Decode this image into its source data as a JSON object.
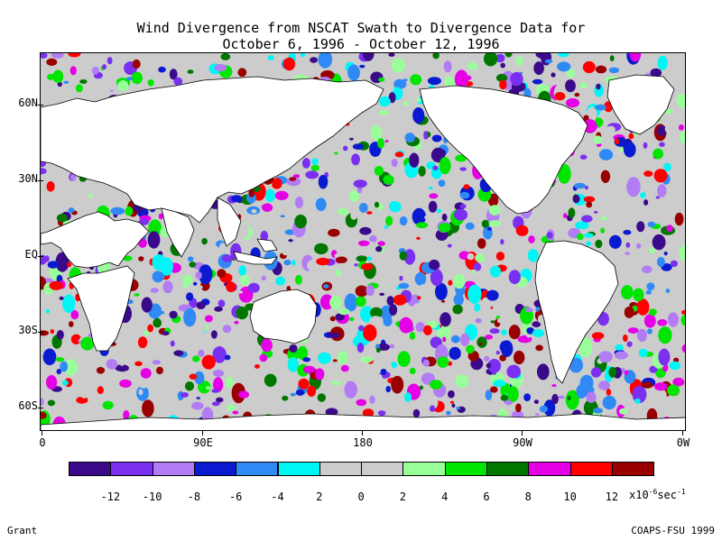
{
  "title": {
    "line1": "Wind Divergence from NSCAT Swath to Divergence Data for",
    "line2": "October 6, 1996 - October 12, 1996"
  },
  "axes": {
    "lat_labels": [
      "60N",
      "30N",
      "EQ",
      "30S",
      "60S"
    ],
    "lon_labels": [
      "0",
      "90E",
      "180",
      "90W",
      "0W"
    ]
  },
  "colorbar": {
    "colors": [
      "#3a0a8a",
      "#7b2ff0",
      "#b27cf5",
      "#0a1ad0",
      "#2f8af5",
      "#00f5f5",
      "#cccccc",
      "#cccccc",
      "#99ff99",
      "#00e600",
      "#007800",
      "#e600e6",
      "#ff0000",
      "#990000"
    ],
    "labels": [
      "-12",
      "-10",
      "-8",
      "-6",
      "-4",
      "2",
      "0",
      "2",
      "4",
      "6",
      "8",
      "10",
      "12"
    ],
    "units_base": "x10",
    "units_exp": "-6",
    "units_sec": "sec",
    "units_sec_exp": "-1"
  },
  "footer": {
    "left": "Grant",
    "right": "COAPS-FSU 1999"
  }
}
